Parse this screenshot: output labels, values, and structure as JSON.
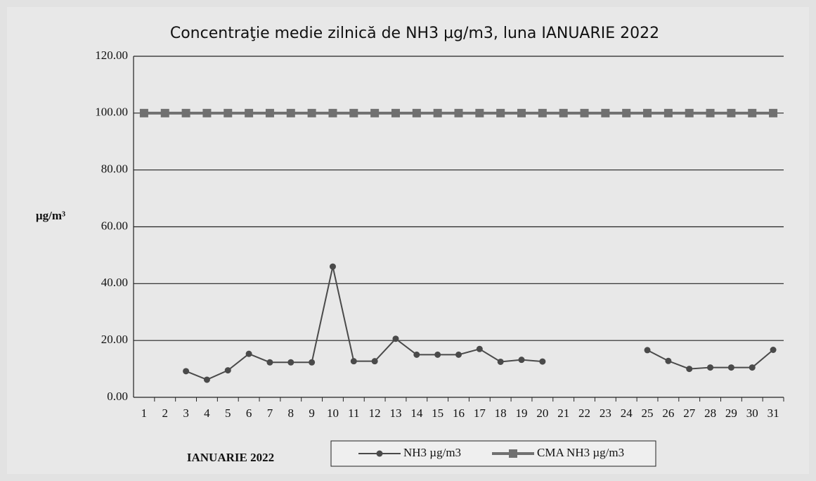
{
  "chart_data": {
    "type": "line",
    "title": "Concentraţie medie zilnică de NH3 µg/m3, luna  IANUARIE 2022",
    "y_label": "µg/m³",
    "x_label": "IANUARIE  2022",
    "categories": [
      "1",
      "2",
      "3",
      "4",
      "5",
      "6",
      "7",
      "8",
      "9",
      "10",
      "11",
      "12",
      "13",
      "14",
      "15",
      "16",
      "17",
      "18",
      "19",
      "20",
      "21",
      "22",
      "23",
      "24",
      "25",
      "26",
      "27",
      "28",
      "29",
      "30",
      "31"
    ],
    "series": [
      {
        "name": "NH3  µg/m3",
        "color": "#4a4a4a",
        "marker": "circle",
        "values": [
          null,
          null,
          9.2,
          6.2,
          9.5,
          15.3,
          12.3,
          12.3,
          12.3,
          46,
          12.7,
          12.7,
          20.6,
          15,
          15,
          15,
          17,
          12.5,
          13.2,
          12.6,
          null,
          null,
          null,
          null,
          16.6,
          12.8,
          10,
          10.5,
          10.5,
          10.5,
          16.7
        ]
      },
      {
        "name": "CMA   NH3  µg/m3",
        "color": "#707070",
        "marker": "square",
        "values": [
          100,
          100,
          100,
          100,
          100,
          100,
          100,
          100,
          100,
          100,
          100,
          100,
          100,
          100,
          100,
          100,
          100,
          100,
          100,
          100,
          100,
          100,
          100,
          100,
          100,
          100,
          100,
          100,
          100,
          100,
          100
        ]
      }
    ],
    "ylim": [
      0,
      120
    ],
    "yticks": [
      {
        "value": 0,
        "label": "0.00"
      },
      {
        "value": 20,
        "label": "20.00"
      },
      {
        "value": 40,
        "label": "40.00"
      },
      {
        "value": 60,
        "label": "60.00"
      },
      {
        "value": 80,
        "label": "80.00"
      },
      {
        "value": 100,
        "label": "100.00"
      },
      {
        "value": 120,
        "label": "120.00"
      }
    ],
    "grid": true
  }
}
